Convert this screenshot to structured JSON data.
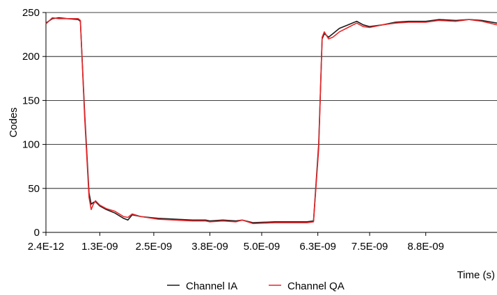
{
  "chart_data": {
    "type": "line",
    "title": "",
    "xlabel": "Time (s)",
    "ylabel": "Codes",
    "ylim": [
      0,
      250
    ],
    "xlim": [
      2.4e-12,
      1.045e-08
    ],
    "grid": "horizontal",
    "legend_position": "bottom",
    "y_ticks": [
      0,
      50,
      100,
      150,
      200,
      250
    ],
    "y_tick_labels": [
      "0",
      "50",
      "100",
      "150",
      "200",
      "250"
    ],
    "x_ticks": [
      2.4e-12,
      1.25e-09,
      2.5e-09,
      3.8e-09,
      5e-09,
      6.3e-09,
      7.5e-09,
      8.8e-09
    ],
    "x_tick_labels": [
      "2.4E-12",
      "1.3E-09",
      "2.5E-09",
      "3.8E-09",
      "5.0E-09",
      "6.3E-09",
      "7.5E-09",
      "8.8E-09"
    ],
    "series": [
      {
        "name": "Channel IA",
        "color": "#1a1a1a",
        "x": [
          2.4e-12,
          1.5e-10,
          3e-10,
          5e-10,
          7.5e-10,
          8e-10,
          9e-10,
          1e-09,
          1.05e-09,
          1.1e-09,
          1.15e-09,
          1.25e-09,
          1.4e-09,
          1.6e-09,
          1.8e-09,
          1.9e-09,
          2e-09,
          2.2e-09,
          2.6e-09,
          3e-09,
          3.4e-09,
          3.7e-09,
          3.8e-09,
          4.1e-09,
          4.4e-09,
          4.55e-09,
          4.8e-09,
          5.3e-09,
          5.8e-09,
          6.05e-09,
          6.2e-09,
          6.32e-09,
          6.4e-09,
          6.45e-09,
          6.55e-09,
          6.65e-09,
          6.8e-09,
          7e-09,
          7.2e-09,
          7.35e-09,
          7.5e-09,
          7.8e-09,
          8.1e-09,
          8.4e-09,
          8.8e-09,
          9.1e-09,
          9.5e-09,
          9.8e-09,
          1.01e-08,
          1.045e-08
        ],
        "y": [
          238,
          243,
          244,
          243,
          242,
          240,
          135,
          45,
          32,
          34,
          35,
          30,
          26,
          22,
          16,
          14,
          20,
          18,
          16,
          15,
          14,
          14,
          13,
          14,
          13,
          14,
          11,
          12,
          12,
          12,
          13,
          100,
          220,
          226,
          222,
          226,
          232,
          236,
          240,
          236,
          234,
          236,
          239,
          240,
          240,
          242,
          241,
          242,
          241,
          238
        ]
      },
      {
        "name": "Channel QA",
        "color": "#e8262a",
        "x": [
          2.4e-12,
          1.5e-10,
          3e-10,
          5e-10,
          7.5e-10,
          8e-10,
          9e-10,
          1e-09,
          1.05e-09,
          1.1e-09,
          1.15e-09,
          1.25e-09,
          1.4e-09,
          1.6e-09,
          1.8e-09,
          1.9e-09,
          2e-09,
          2.2e-09,
          2.6e-09,
          3e-09,
          3.4e-09,
          3.7e-09,
          3.8e-09,
          4.1e-09,
          4.4e-09,
          4.55e-09,
          4.8e-09,
          5.3e-09,
          5.8e-09,
          6.05e-09,
          6.2e-09,
          6.32e-09,
          6.4e-09,
          6.45e-09,
          6.55e-09,
          6.65e-09,
          6.8e-09,
          7e-09,
          7.2e-09,
          7.35e-09,
          7.5e-09,
          7.8e-09,
          8.1e-09,
          8.4e-09,
          8.8e-09,
          9.1e-09,
          9.5e-09,
          9.8e-09,
          1.01e-08,
          1.045e-08
        ],
        "y": [
          237,
          244,
          243,
          243,
          243,
          241,
          130,
          40,
          26,
          32,
          36,
          31,
          27,
          24,
          18,
          17,
          21,
          18,
          15,
          14,
          13,
          13,
          12,
          13,
          12,
          14,
          10,
          11,
          11,
          11,
          12,
          95,
          222,
          228,
          220,
          222,
          228,
          233,
          238,
          234,
          233,
          236,
          238,
          239,
          239,
          241,
          240,
          242,
          240,
          236
        ]
      }
    ]
  }
}
